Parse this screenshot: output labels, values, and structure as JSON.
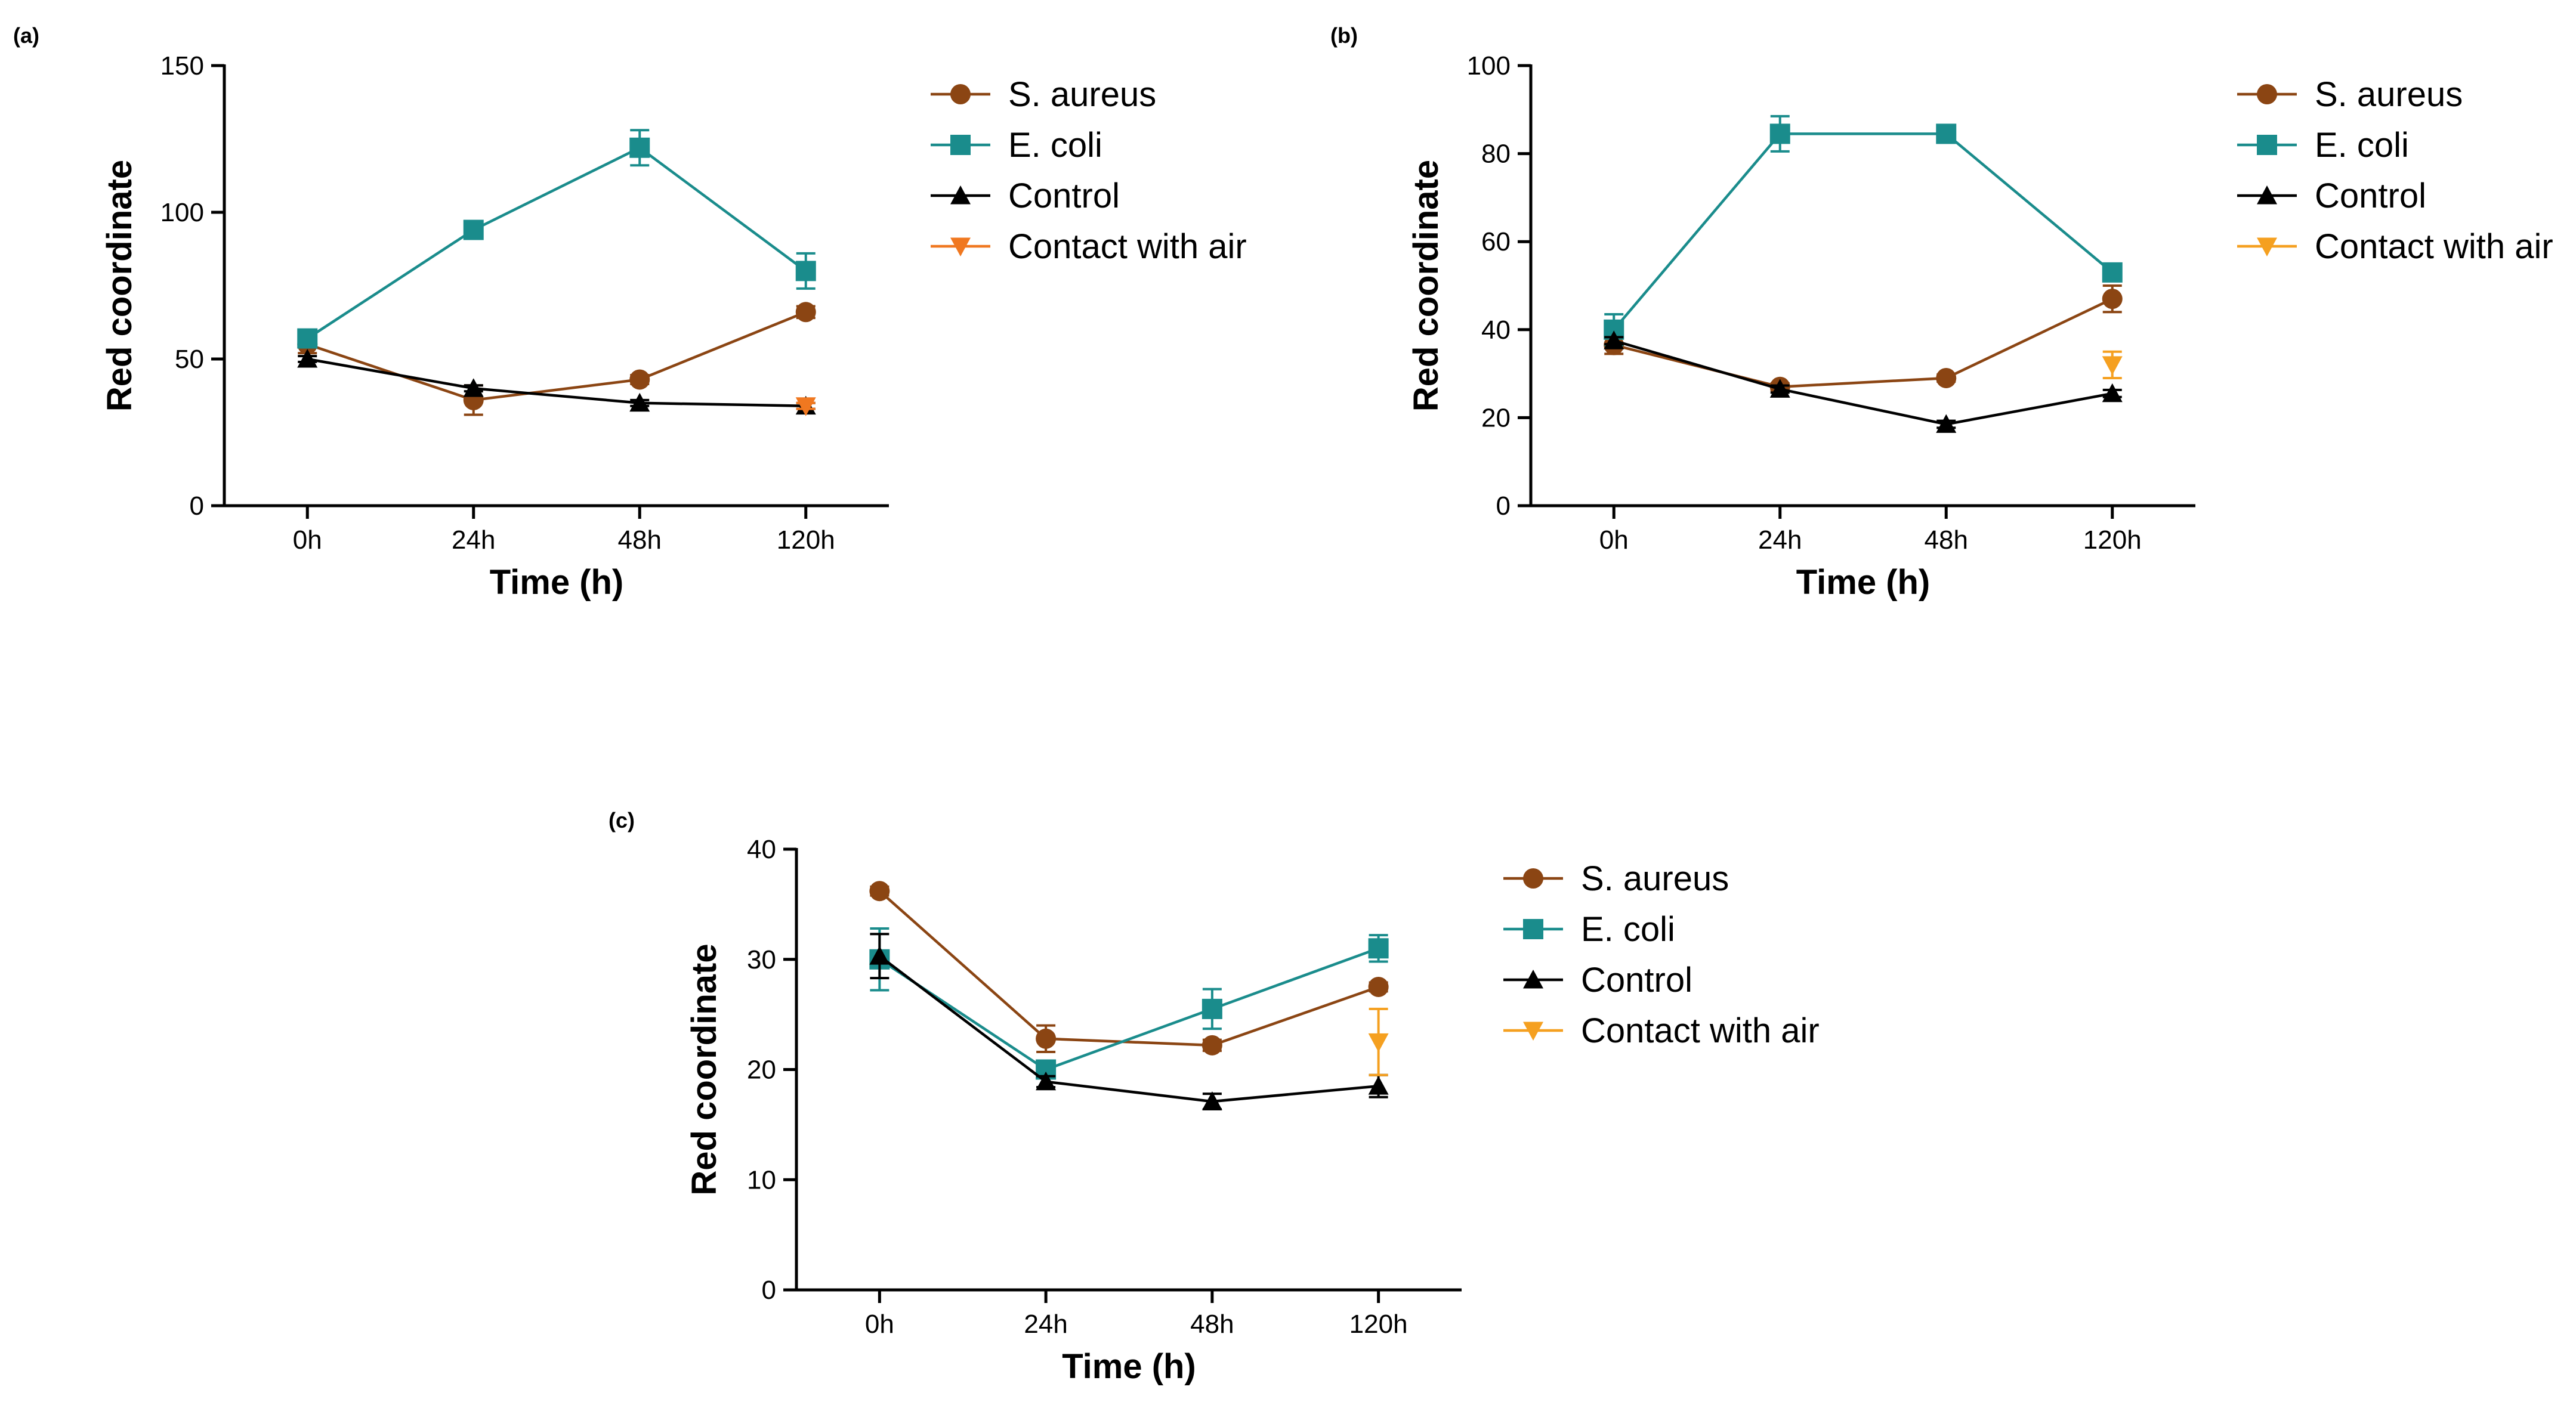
{
  "chart_data": [
    {
      "panel_label": "(a)",
      "type": "line",
      "categories": [
        "0h",
        "24h",
        "48h",
        "120h"
      ],
      "xlabel": "Time (h)",
      "ylabel": "Red coordinate",
      "ylim": [
        0,
        150
      ],
      "yticks": [
        0,
        50,
        100,
        150
      ],
      "grid": false,
      "legend_position": "right",
      "series": [
        {
          "name": "S. aureus",
          "marker": "circle",
          "color": "#8B4513",
          "values": [
            55,
            36,
            43,
            66
          ],
          "errors": [
            3,
            5,
            1.5,
            2
          ]
        },
        {
          "name": "E. coli",
          "marker": "square",
          "color": "#1A8C8C",
          "values": [
            57,
            94,
            122,
            80
          ],
          "errors": [
            2,
            1.5,
            6,
            6
          ]
        },
        {
          "name": "Control",
          "marker": "triangle-up",
          "color": "#000000",
          "values": [
            50,
            40,
            35,
            34
          ],
          "errors": [
            1,
            1,
            1,
            1
          ]
        },
        {
          "name": "Contact with air",
          "marker": "triangle-down",
          "color": "#F07820",
          "values": [
            null,
            null,
            null,
            34
          ],
          "errors": [
            null,
            null,
            null,
            1
          ]
        }
      ]
    },
    {
      "panel_label": "(b)",
      "type": "line",
      "categories": [
        "0h",
        "24h",
        "48h",
        "120h"
      ],
      "xlabel": "Time (h)",
      "ylabel": "Red coordinate",
      "ylim": [
        0,
        100
      ],
      "yticks": [
        0,
        20,
        40,
        60,
        80,
        100
      ],
      "grid": false,
      "legend_position": "right",
      "series": [
        {
          "name": "S. aureus",
          "marker": "circle",
          "color": "#8B4513",
          "values": [
            36.5,
            27,
            29,
            47
          ],
          "errors": [
            2,
            0.8,
            0.8,
            3
          ]
        },
        {
          "name": "E. coli",
          "marker": "square",
          "color": "#1A8C8C",
          "values": [
            40,
            84.5,
            84.5,
            53
          ],
          "errors": [
            3.5,
            4,
            2,
            1.5
          ]
        },
        {
          "name": "Control",
          "marker": "triangle-up",
          "color": "#000000",
          "values": [
            37.5,
            26.5,
            18.5,
            25.5
          ],
          "errors": [
            0.8,
            0.8,
            0.8,
            0.8
          ]
        },
        {
          "name": "Contact with air",
          "marker": "triangle-down",
          "color": "#F5A020",
          "values": [
            null,
            null,
            null,
            32
          ],
          "errors": [
            null,
            null,
            null,
            3
          ]
        }
      ]
    },
    {
      "panel_label": "(c)",
      "type": "line",
      "categories": [
        "0h",
        "24h",
        "48h",
        "120h"
      ],
      "xlabel": "Time (h)",
      "ylabel": "Red coordinate",
      "ylim": [
        0,
        40
      ],
      "yticks": [
        0,
        10,
        20,
        30,
        40
      ],
      "grid": false,
      "legend_position": "right",
      "series": [
        {
          "name": "S. aureus",
          "marker": "circle",
          "color": "#8B4513",
          "values": [
            36.2,
            22.8,
            22.2,
            27.5
          ],
          "errors": [
            0.4,
            1.2,
            0.5,
            0.4
          ]
        },
        {
          "name": "E. coli",
          "marker": "square",
          "color": "#1A8C8C",
          "values": [
            30,
            20,
            25.5,
            31
          ],
          "errors": [
            2.8,
            0.5,
            1.8,
            1.2
          ]
        },
        {
          "name": "Control",
          "marker": "triangle-up",
          "color": "#000000",
          "values": [
            30.3,
            18.9,
            17.1,
            18.5
          ],
          "errors": [
            2,
            0.5,
            0.7,
            1
          ]
        },
        {
          "name": "Contact with air",
          "marker": "triangle-down",
          "color": "#F5A020",
          "values": [
            null,
            null,
            null,
            22.5
          ],
          "errors": [
            null,
            null,
            null,
            3
          ]
        }
      ]
    }
  ]
}
